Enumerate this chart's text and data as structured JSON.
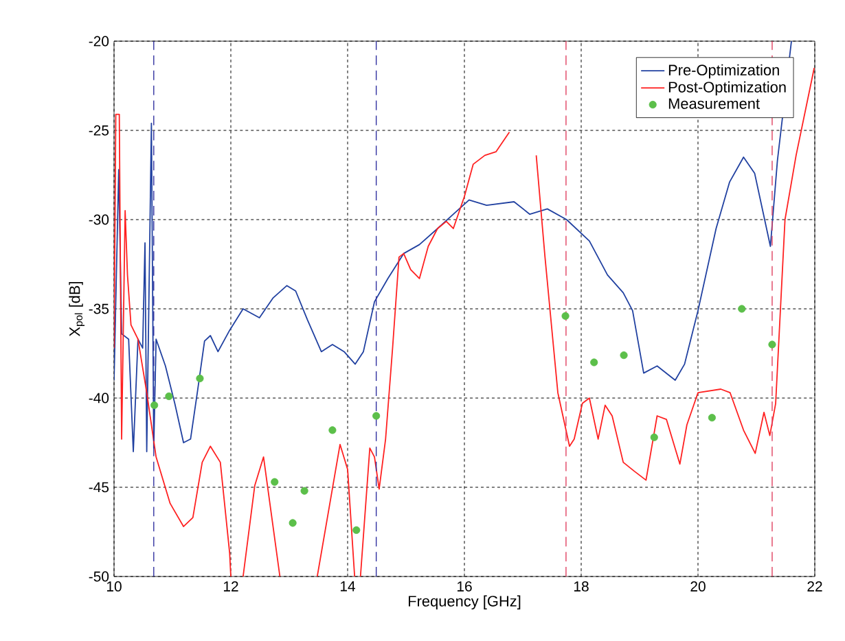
{
  "chart_data": {
    "type": "line",
    "xlabel": "Frequency [GHz]",
    "ylabel": "X$_{pol}$ [dB]",
    "xlim": [
      10,
      22
    ],
    "ylim": [
      -50,
      -20
    ],
    "xticks": [
      10,
      12,
      14,
      16,
      18,
      20,
      22
    ],
    "yticks": [
      -50,
      -45,
      -40,
      -35,
      -30,
      -25,
      -20
    ],
    "grid": true,
    "legend": "top right",
    "series": [
      {
        "name": "Pre-Optimization",
        "color": "#2040a0",
        "x": [
          10.0,
          10.08,
          10.13,
          10.25,
          10.33,
          10.41,
          10.49,
          10.53,
          10.56,
          10.64,
          10.68,
          10.72,
          10.88,
          11.04,
          11.19,
          11.31,
          11.43,
          11.55,
          11.65,
          11.78,
          11.98,
          12.21,
          12.49,
          12.72,
          12.96,
          13.11,
          13.31,
          13.55,
          13.74,
          13.94,
          14.13,
          14.27,
          14.46,
          14.69,
          14.96,
          15.23,
          15.54,
          15.81,
          16.08,
          16.38,
          16.85,
          17.12,
          17.42,
          17.75,
          18.14,
          18.45,
          18.72,
          18.88,
          19.07,
          19.3,
          19.61,
          19.77,
          20.0,
          20.31,
          20.54,
          20.78,
          20.97,
          21.24,
          21.36,
          21.6
        ],
        "values": [
          -39.0,
          -27.2,
          -36.4,
          -36.7,
          -43.0,
          -36.7,
          -37.2,
          -31.3,
          -43.0,
          -24.6,
          -42.8,
          -36.7,
          -38.2,
          -40.3,
          -42.5,
          -42.3,
          -39.6,
          -36.8,
          -36.5,
          -37.4,
          -36.2,
          -35.0,
          -35.5,
          -34.4,
          -33.7,
          -34.0,
          -35.6,
          -37.4,
          -37.0,
          -37.4,
          -38.1,
          -37.4,
          -34.6,
          -33.3,
          -31.9,
          -31.4,
          -30.5,
          -29.7,
          -28.9,
          -29.2,
          -29.0,
          -29.7,
          -29.4,
          -30.0,
          -31.2,
          -33.1,
          -34.1,
          -35.1,
          -38.6,
          -38.2,
          -39.0,
          -38.1,
          -35.1,
          -30.5,
          -27.9,
          -26.5,
          -27.4,
          -31.5,
          -26.7,
          -20.0
        ]
      },
      {
        "name": "Post-Optimization",
        "color": "#ff2020",
        "x": [
          10.0,
          10.03,
          10.09,
          10.13,
          10.19,
          10.23,
          10.29,
          10.41,
          10.56,
          10.72,
          10.96,
          11.19,
          11.35,
          11.51,
          11.65,
          11.82,
          11.98,
          12.0,
          12.1,
          12.21,
          12.41,
          12.56,
          12.84,
          12.9,
          13.48,
          13.87,
          14.0,
          14.12,
          14.17,
          14.22,
          14.38,
          14.46,
          14.54,
          14.65,
          14.77,
          14.88,
          14.96,
          15.08,
          15.23,
          15.38,
          15.54,
          15.69,
          15.81,
          16.0,
          16.15,
          16.35,
          16.54,
          16.77,
          17.0,
          17.23,
          17.38,
          17.6,
          17.8,
          17.88,
          18.02,
          18.14,
          18.29,
          18.41,
          18.53,
          18.72,
          18.91,
          19.11,
          19.3,
          19.46,
          19.69,
          19.81,
          20.0,
          20.39,
          20.55,
          20.78,
          20.98,
          21.13,
          21.23,
          21.33,
          21.49,
          21.68,
          21.99
        ],
        "values": [
          -37.2,
          -24.1,
          -24.1,
          -42.3,
          -29.5,
          -33.1,
          -35.9,
          -36.7,
          -39.7,
          -43.3,
          -45.9,
          -47.2,
          -46.7,
          -43.6,
          -42.7,
          -43.6,
          -48.7,
          -50.0,
          null,
          -50.0,
          -44.9,
          -43.3,
          -50.0,
          null,
          -50.0,
          -42.6,
          -44.0,
          -50.0,
          null,
          -50.0,
          -42.8,
          -43.3,
          -45.1,
          -42.3,
          -37.2,
          -32.1,
          -31.9,
          -32.8,
          -33.3,
          -31.5,
          -30.5,
          -30.1,
          -30.5,
          -28.7,
          -26.9,
          -26.4,
          -26.2,
          -25.1,
          null,
          -26.4,
          -32.1,
          -39.7,
          -42.7,
          -42.3,
          -40.3,
          -40.0,
          -42.3,
          -40.4,
          -41.0,
          -43.6,
          -44.1,
          -44.6,
          -41.0,
          -41.2,
          -43.7,
          -41.5,
          -39.7,
          -39.5,
          -39.7,
          -41.8,
          -43.1,
          -40.8,
          -42.1,
          -40.3,
          -30.0,
          -26.4,
          -21.5
        ]
      },
      {
        "name": "Measurement",
        "type": "scatter",
        "marker": "circle",
        "color": "#5cbf4a",
        "x": [
          10.69,
          10.94,
          11.47,
          12.75,
          13.06,
          13.26,
          13.74,
          14.15,
          14.49,
          17.73,
          18.22,
          18.73,
          19.25,
          20.24,
          20.75,
          21.27
        ],
        "values": [
          -40.4,
          -39.9,
          -38.9,
          -44.7,
          -47.0,
          -45.2,
          -41.8,
          -47.4,
          -41.0,
          -35.4,
          -38.0,
          -37.6,
          -42.2,
          -41.1,
          -35.0,
          -37.0
        ]
      }
    ],
    "ref_lines": [
      {
        "axis": "x",
        "value": 10.68,
        "color": "#3030a0",
        "line_style": "dashed"
      },
      {
        "axis": "x",
        "value": 14.49,
        "color": "#3030a0",
        "line_style": "dashed"
      },
      {
        "axis": "x",
        "value": 17.74,
        "color": "#e04060",
        "line_style": "dashed"
      },
      {
        "axis": "x",
        "value": 21.27,
        "color": "#e04060",
        "line_style": "dashed"
      }
    ]
  }
}
